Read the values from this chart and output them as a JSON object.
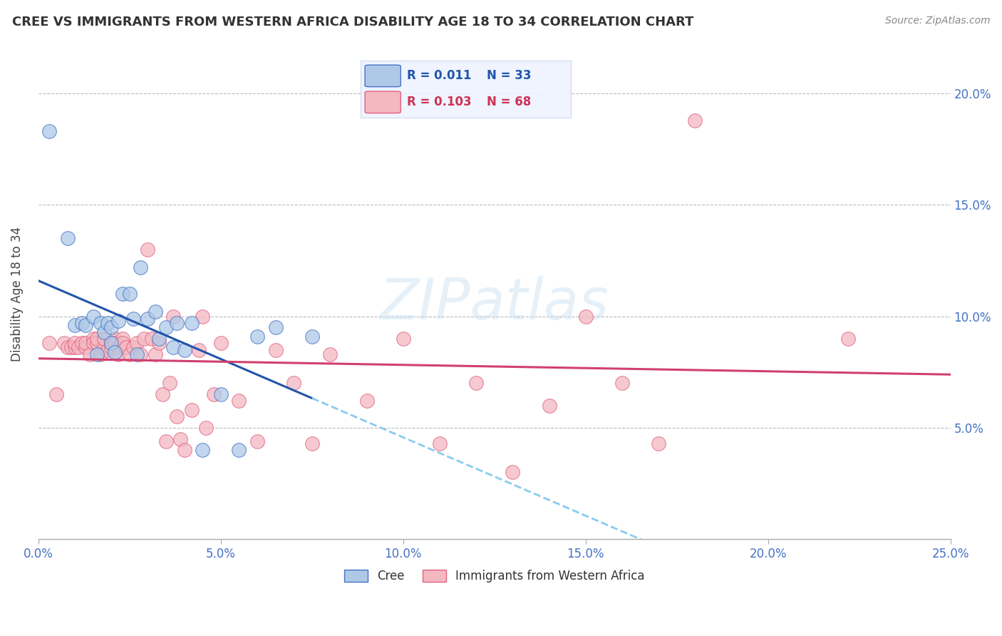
{
  "title": "CREE VS IMMIGRANTS FROM WESTERN AFRICA DISABILITY AGE 18 TO 34 CORRELATION CHART",
  "source": "Source: ZipAtlas.com",
  "ylabel": "Disability Age 18 to 34",
  "xlim": [
    0,
    0.25
  ],
  "ylim": [
    0,
    0.22
  ],
  "xticks": [
    0.0,
    0.05,
    0.1,
    0.15,
    0.2,
    0.25
  ],
  "yticks": [
    0.05,
    0.1,
    0.15,
    0.2
  ],
  "ytick_labels": [
    "5.0%",
    "10.0%",
    "15.0%",
    "20.0%"
  ],
  "xtick_labels": [
    "0.0%",
    "5.0%",
    "10.0%",
    "15.0%",
    "20.0%",
    "25.0%"
  ],
  "cree_fill_color": "#aec9e8",
  "cree_edge_color": "#4472C4",
  "immigrants_fill_color": "#f4b8c1",
  "immigrants_edge_color": "#e06080",
  "cree_line_color": "#2255aa",
  "immigrants_line_color": "#d04070",
  "dashed_line_color": "#88ccee",
  "tick_color": "#4472C4",
  "grid_color": "#bbbbbb",
  "legend_R1": "0.011",
  "legend_N1": "33",
  "legend_R2": "0.103",
  "legend_N2": "68",
  "legend_color1": "#2255aa",
  "legend_color2": "#cc3355",
  "legend_bg": "#eef3ff",
  "cree_label": "Cree",
  "immigrants_label": "Immigrants from Western Africa",
  "watermark_text": "ZIPatlas",
  "cree_x": [
    0.003,
    0.008,
    0.01,
    0.012,
    0.013,
    0.015,
    0.016,
    0.017,
    0.018,
    0.019,
    0.02,
    0.02,
    0.021,
    0.022,
    0.023,
    0.025,
    0.026,
    0.027,
    0.028,
    0.03,
    0.032,
    0.033,
    0.035,
    0.037,
    0.038,
    0.04,
    0.042,
    0.045,
    0.05,
    0.055,
    0.06,
    0.065,
    0.075
  ],
  "cree_y": [
    0.183,
    0.135,
    0.096,
    0.097,
    0.096,
    0.1,
    0.083,
    0.097,
    0.093,
    0.097,
    0.088,
    0.095,
    0.084,
    0.098,
    0.11,
    0.11,
    0.099,
    0.083,
    0.122,
    0.099,
    0.102,
    0.09,
    0.095,
    0.086,
    0.097,
    0.085,
    0.097,
    0.04,
    0.065,
    0.04,
    0.091,
    0.095,
    0.091
  ],
  "immigrants_x": [
    0.003,
    0.005,
    0.007,
    0.008,
    0.009,
    0.01,
    0.01,
    0.011,
    0.012,
    0.013,
    0.013,
    0.014,
    0.015,
    0.015,
    0.016,
    0.016,
    0.017,
    0.018,
    0.018,
    0.019,
    0.02,
    0.02,
    0.021,
    0.021,
    0.022,
    0.022,
    0.023,
    0.023,
    0.024,
    0.025,
    0.026,
    0.027,
    0.028,
    0.029,
    0.03,
    0.031,
    0.032,
    0.033,
    0.034,
    0.035,
    0.036,
    0.037,
    0.038,
    0.039,
    0.04,
    0.042,
    0.044,
    0.046,
    0.048,
    0.05,
    0.055,
    0.06,
    0.065,
    0.07,
    0.075,
    0.08,
    0.09,
    0.1,
    0.11,
    0.12,
    0.13,
    0.14,
    0.15,
    0.16,
    0.17,
    0.18,
    0.222,
    0.045
  ],
  "immigrants_y": [
    0.088,
    0.065,
    0.088,
    0.086,
    0.086,
    0.086,
    0.088,
    0.086,
    0.088,
    0.086,
    0.088,
    0.083,
    0.09,
    0.088,
    0.088,
    0.09,
    0.083,
    0.086,
    0.09,
    0.085,
    0.088,
    0.086,
    0.09,
    0.088,
    0.086,
    0.083,
    0.09,
    0.088,
    0.086,
    0.083,
    0.086,
    0.088,
    0.083,
    0.09,
    0.13,
    0.09,
    0.083,
    0.088,
    0.065,
    0.044,
    0.07,
    0.1,
    0.055,
    0.045,
    0.04,
    0.058,
    0.085,
    0.05,
    0.065,
    0.088,
    0.062,
    0.044,
    0.085,
    0.07,
    0.043,
    0.083,
    0.062,
    0.09,
    0.043,
    0.07,
    0.03,
    0.06,
    0.1,
    0.07,
    0.043,
    0.188,
    0.09,
    0.1
  ]
}
